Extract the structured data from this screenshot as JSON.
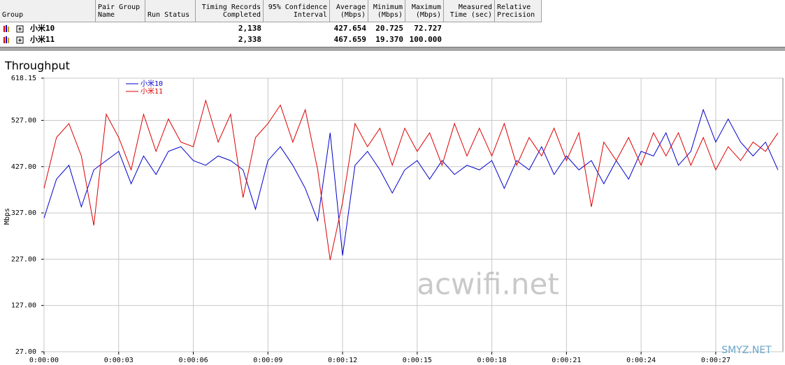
{
  "table": {
    "columns": [
      "Group",
      "Pair Group\nName",
      "Run Status",
      "Timing Records\nCompleted",
      "95% Confidence\nInterval",
      "Average\n(Mbps)",
      "Minimum\n(Mbps)",
      "Maximum\n(Mbps)",
      "Measured\nTime (sec)",
      "Relative\nPrecision"
    ],
    "rows": [
      {
        "group": "小米10",
        "timing_records": "2,138",
        "average": "427.654",
        "minimum": "20.725",
        "maximum": "72.727"
      },
      {
        "group": "小米11",
        "timing_records": "2,338",
        "average": "467.659",
        "minimum": "19.370",
        "maximum": "100.000"
      }
    ]
  },
  "watermarks": [
    "acwifi.net",
    "SMYZ.NET"
  ],
  "chart_data": {
    "type": "line",
    "title": "Throughput",
    "y_label": "Mbps",
    "x": [
      0,
      0.5,
      1,
      1.5,
      2,
      2.5,
      3,
      3.5,
      4,
      4.5,
      5,
      5.5,
      6,
      6.5,
      7,
      7.5,
      8,
      8.5,
      9,
      9.5,
      10,
      10.5,
      11,
      11.5,
      12,
      12.5,
      13,
      13.5,
      14,
      14.5,
      15,
      15.5,
      16,
      16.5,
      17,
      17.5,
      18,
      18.5,
      19,
      19.5,
      20,
      20.5,
      21,
      21.5,
      22,
      22.5,
      23,
      23.5,
      24,
      24.5,
      25,
      25.5,
      26,
      26.5,
      27,
      27.5,
      28,
      28.5,
      29,
      29.5
    ],
    "series": [
      {
        "name": "小米10",
        "color": "#0000cc",
        "values": [
          316,
          400,
          430,
          340,
          420,
          440,
          460,
          390,
          450,
          410,
          460,
          470,
          440,
          430,
          450,
          440,
          420,
          335,
          440,
          470,
          430,
          380,
          310,
          500,
          235,
          430,
          460,
          420,
          370,
          420,
          440,
          400,
          440,
          410,
          430,
          420,
          440,
          380,
          440,
          420,
          470,
          410,
          450,
          420,
          440,
          390,
          440,
          400,
          460,
          450,
          500,
          430,
          460,
          550,
          480,
          530,
          480,
          450,
          480,
          420
        ]
      },
      {
        "name": "小米11",
        "color": "#dd0000",
        "values": [
          380,
          490,
          520,
          450,
          300,
          540,
          490,
          420,
          540,
          460,
          530,
          480,
          470,
          570,
          480,
          540,
          360,
          490,
          520,
          560,
          480,
          550,
          420,
          225,
          350,
          520,
          470,
          510,
          430,
          510,
          460,
          500,
          430,
          520,
          450,
          510,
          450,
          520,
          430,
          490,
          450,
          510,
          440,
          500,
          340,
          480,
          440,
          490,
          430,
          500,
          450,
          500,
          430,
          490,
          420,
          470,
          440,
          480,
          460,
          500
        ]
      }
    ],
    "xlim": [
      0,
      29.7
    ],
    "xticks": [
      {
        "value": 0,
        "label": "0:00:00"
      },
      {
        "value": 3,
        "label": "0:00:03"
      },
      {
        "value": 6,
        "label": "0:00:06"
      },
      {
        "value": 9,
        "label": "0:00:09"
      },
      {
        "value": 12,
        "label": "0:00:12"
      },
      {
        "value": 15,
        "label": "0:00:15"
      },
      {
        "value": 18,
        "label": "0:00:18"
      },
      {
        "value": 21,
        "label": "0:00:21"
      },
      {
        "value": 24,
        "label": "0:00:24"
      },
      {
        "value": 27,
        "label": "0:00:27"
      }
    ],
    "ylim": [
      27,
      618.15
    ],
    "yticks": [
      {
        "value": 27,
        "label": "27.00"
      },
      {
        "value": 127,
        "label": "127.00"
      },
      {
        "value": 227,
        "label": "227.00"
      },
      {
        "value": 327,
        "label": "327.00"
      },
      {
        "value": 427,
        "label": "427.00"
      },
      {
        "value": 527,
        "label": "527.00"
      },
      618.15
    ],
    "grid": true,
    "legend": "top-left"
  }
}
